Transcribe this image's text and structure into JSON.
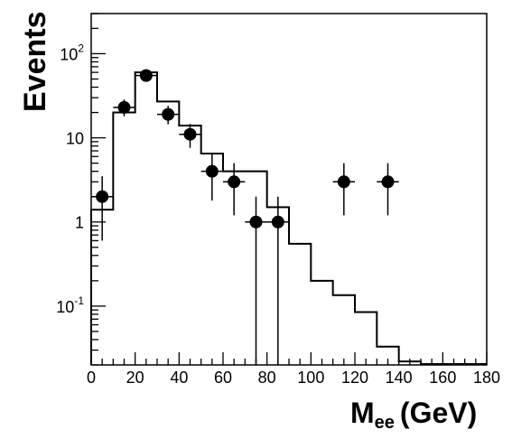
{
  "chart_data": {
    "type": "histogram",
    "xlabel": "M",
    "xlabel_subscript": "ee",
    "xlabel_suffix": "(GeV)",
    "ylabel": "Events",
    "xlim": [
      0,
      180
    ],
    "ylim": [
      0.02,
      300
    ],
    "y_scale": "log",
    "grid": false,
    "x_ticks": [
      0,
      20,
      40,
      60,
      80,
      100,
      120,
      140,
      160,
      180
    ],
    "y_ticks": [
      {
        "value": 0.1,
        "base": "10",
        "exp": "-1"
      },
      {
        "value": 1,
        "base": "1",
        "exp": ""
      },
      {
        "value": 10,
        "base": "10",
        "exp": ""
      },
      {
        "value": 100,
        "base": "10",
        "exp": "2"
      }
    ],
    "series": [
      {
        "kind": "histogram",
        "bin_width": 10,
        "bin_edges": [
          0,
          10,
          20,
          30,
          40,
          50,
          60,
          70,
          80,
          90,
          100,
          110,
          120,
          130,
          140,
          150,
          160,
          170,
          180
        ],
        "values": [
          1.4,
          20,
          60,
          27,
          14,
          6.5,
          4,
          4,
          1.5,
          0.55,
          0.2,
          0.135,
          0.085,
          0.033,
          0.022,
          0.0205,
          0.0205,
          0.0205
        ]
      },
      {
        "kind": "points",
        "x": [
          5,
          15,
          25,
          35,
          45,
          55,
          65,
          75,
          85,
          115,
          135
        ],
        "y": [
          2,
          23,
          55,
          19,
          11,
          4,
          3,
          1,
          1,
          3,
          3
        ],
        "yerr_low": [
          1.4,
          5,
          8,
          4.5,
          3.4,
          2.2,
          1.8,
          1,
          1,
          1.8,
          1.8
        ],
        "yerr_high": [
          1.5,
          5.5,
          8,
          5,
          3.6,
          2.5,
          2,
          1,
          1,
          2,
          2
        ],
        "xerr": 5
      }
    ]
  }
}
